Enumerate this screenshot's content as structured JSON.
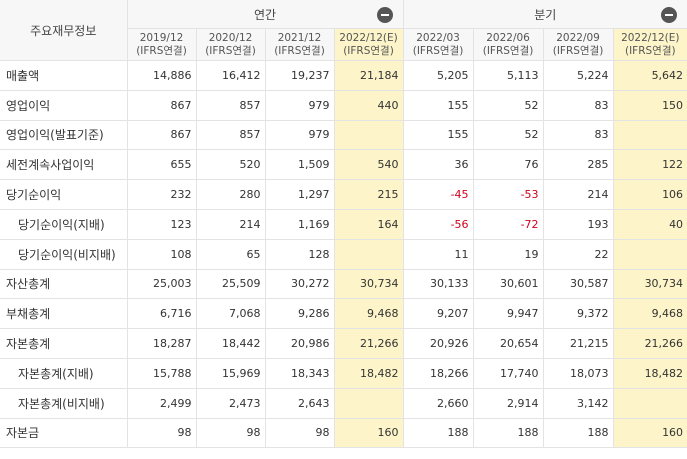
{
  "header": {
    "label": "주요재무정보",
    "group_annual": "연간",
    "group_quarter": "분기",
    "columns": [
      {
        "period": "2019/12",
        "basis": "(IFRS연결)",
        "est": false
      },
      {
        "period": "2020/12",
        "basis": "(IFRS연결)",
        "est": false
      },
      {
        "period": "2021/12",
        "basis": "(IFRS연결)",
        "est": false
      },
      {
        "period": "2022/12(E)",
        "basis": "(IFRS연결)",
        "est": true
      },
      {
        "period": "2022/03",
        "basis": "(IFRS연결)",
        "est": false
      },
      {
        "period": "2022/06",
        "basis": "(IFRS연결)",
        "est": false
      },
      {
        "period": "2022/09",
        "basis": "(IFRS연결)",
        "est": false
      },
      {
        "period": "2022/12(E)",
        "basis": "(IFRS연결)",
        "est": true
      }
    ]
  },
  "rows": [
    {
      "label": "매출액",
      "indent": false,
      "values": [
        "14,886",
        "16,412",
        "19,237",
        "21,184",
        "5,205",
        "5,113",
        "5,224",
        "5,642"
      ]
    },
    {
      "label": "영업이익",
      "indent": false,
      "values": [
        "867",
        "857",
        "979",
        "440",
        "155",
        "52",
        "83",
        "150"
      ]
    },
    {
      "label": "영업이익(발표기준)",
      "indent": false,
      "values": [
        "867",
        "857",
        "979",
        "",
        "155",
        "52",
        "83",
        ""
      ]
    },
    {
      "label": "세전계속사업이익",
      "indent": false,
      "values": [
        "655",
        "520",
        "1,509",
        "540",
        "36",
        "76",
        "285",
        "122"
      ]
    },
    {
      "label": "당기순이익",
      "indent": false,
      "values": [
        "232",
        "280",
        "1,297",
        "215",
        "-45",
        "-53",
        "214",
        "106"
      ]
    },
    {
      "label": "당기순이익(지배)",
      "indent": true,
      "values": [
        "123",
        "214",
        "1,169",
        "164",
        "-56",
        "-72",
        "193",
        "40"
      ]
    },
    {
      "label": "당기순이익(비지배)",
      "indent": true,
      "values": [
        "108",
        "65",
        "128",
        "",
        "11",
        "19",
        "22",
        ""
      ]
    },
    {
      "label": "자산총계",
      "indent": false,
      "values": [
        "25,003",
        "25,509",
        "30,272",
        "30,734",
        "30,133",
        "30,601",
        "30,587",
        "30,734"
      ]
    },
    {
      "label": "부채총계",
      "indent": false,
      "values": [
        "6,716",
        "7,068",
        "9,286",
        "9,468",
        "9,207",
        "9,947",
        "9,372",
        "9,468"
      ]
    },
    {
      "label": "자본총계",
      "indent": false,
      "values": [
        "18,287",
        "18,442",
        "20,986",
        "21,266",
        "20,926",
        "20,654",
        "21,215",
        "21,266"
      ]
    },
    {
      "label": "자본총계(지배)",
      "indent": true,
      "values": [
        "15,788",
        "15,969",
        "18,343",
        "18,482",
        "18,266",
        "17,740",
        "18,073",
        "18,482"
      ]
    },
    {
      "label": "자본총계(비지배)",
      "indent": true,
      "values": [
        "2,499",
        "2,473",
        "2,643",
        "",
        "2,660",
        "2,914",
        "3,142",
        ""
      ]
    },
    {
      "label": "자본금",
      "indent": false,
      "values": [
        "98",
        "98",
        "98",
        "160",
        "188",
        "188",
        "188",
        "160"
      ]
    }
  ],
  "colors": {
    "estimate_bg": "#fdf5c9",
    "negative": "#d0021b",
    "header_bg": "#f7f7f7"
  },
  "icons": {
    "collapse": "minus-circle-icon"
  }
}
